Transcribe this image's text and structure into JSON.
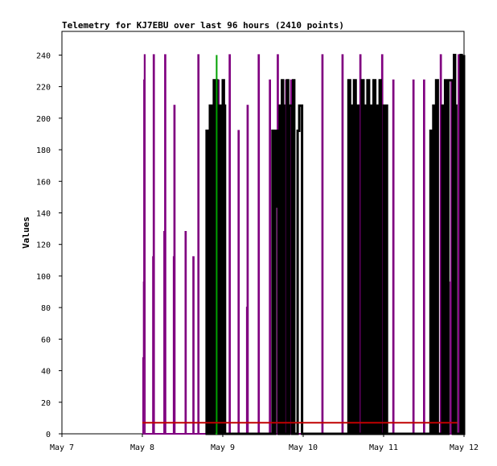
{
  "chart_data": {
    "type": "line",
    "title": "Telemetry for KJ7EBU over last 96 hours (2410 points)",
    "xlabel": "",
    "ylabel": "Values",
    "x_ticks": [
      "May 7",
      "May 8",
      "May 9",
      "May 10",
      "May 11",
      "May 12"
    ],
    "xlim": [
      "May 7",
      "May 12"
    ],
    "y_ticks": [
      0,
      20,
      40,
      60,
      80,
      100,
      120,
      140,
      160,
      180,
      200,
      220,
      240
    ],
    "ylim": [
      0,
      255
    ],
    "grid": false,
    "legend": "none",
    "series": [
      {
        "color": "#800080",
        "points": [
          [
            "May 8 00:10",
            0
          ],
          [
            "May 8 00:15",
            48
          ],
          [
            "May 8 00:25",
            96
          ],
          [
            "May 8 00:30",
            224
          ],
          [
            "May 8 00:40",
            240
          ],
          [
            "May 8 00:45",
            0
          ],
          [
            "May 8 03:00",
            0
          ],
          [
            "May 8 03:10",
            112
          ],
          [
            "May 8 03:20",
            240
          ],
          [
            "May 8 03:30",
            0
          ],
          [
            "May 8 06:20",
            0
          ],
          [
            "May 8 06:30",
            128
          ],
          [
            "May 8 06:45",
            240
          ],
          [
            "May 8 06:55",
            0
          ],
          [
            "May 8 09:10",
            0
          ],
          [
            "May 8 09:20",
            112
          ],
          [
            "May 8 09:30",
            208
          ],
          [
            "May 8 09:40",
            0
          ],
          [
            "May 8 12:40",
            0
          ],
          [
            "May 8 12:50",
            128
          ],
          [
            "May 8 13:00",
            0
          ],
          [
            "May 8 15:00",
            0
          ],
          [
            "May 8 15:10",
            112
          ],
          [
            "May 8 15:20",
            0
          ],
          [
            "May 8 16:30",
            0
          ],
          [
            "May 8 16:40",
            240
          ],
          [
            "May 8 16:50",
            0
          ],
          [
            "May 8 22:30",
            0
          ],
          [
            "May 8 22:40",
            224
          ],
          [
            "May 8 22:50",
            0
          ],
          [
            "May 9 01:50",
            0
          ],
          [
            "May 9 02:00",
            240
          ],
          [
            "May 9 02:10",
            0
          ],
          [
            "May 9 04:30",
            0
          ],
          [
            "May 9 04:40",
            192
          ],
          [
            "May 9 04:50",
            0
          ],
          [
            "May 9 07:00",
            0
          ],
          [
            "May 9 07:10",
            80
          ],
          [
            "May 9 07:20",
            208
          ],
          [
            "May 9 07:30",
            0
          ],
          [
            "May 9 10:30",
            0
          ],
          [
            "May 9 10:40",
            240
          ],
          [
            "May 9 10:50",
            0
          ],
          [
            "May 9 13:50",
            0
          ],
          [
            "May 9 14:00",
            224
          ],
          [
            "May 9 14:10",
            0
          ],
          [
            "May 9 16:10",
            0
          ],
          [
            "May 9 16:20",
            240
          ],
          [
            "May 9 16:30",
            0
          ],
          [
            "May 9 18:40",
            0
          ],
          [
            "May 9 18:50",
            224
          ],
          [
            "May 9 19:00",
            0
          ],
          [
            "May 9 20:10",
            0
          ],
          [
            "May 9 20:20",
            224
          ],
          [
            "May 9 20:30",
            0
          ],
          [
            "May 10 05:30",
            0
          ],
          [
            "May 10 05:40",
            240
          ],
          [
            "May 10 05:50",
            0
          ],
          [
            "May 10 11:30",
            0
          ],
          [
            "May 10 11:40",
            240
          ],
          [
            "May 10 11:50",
            0
          ],
          [
            "May 10 16:50",
            0
          ],
          [
            "May 10 17:00",
            240
          ],
          [
            "May 10 17:10",
            0
          ],
          [
            "May 10 23:20",
            0
          ],
          [
            "May 10 23:30",
            240
          ],
          [
            "May 10 23:40",
            0
          ],
          [
            "May 11 02:40",
            0
          ],
          [
            "May 11 02:50",
            224
          ],
          [
            "May 11 03:00",
            0
          ],
          [
            "May 11 08:40",
            0
          ],
          [
            "May 11 08:50",
            224
          ],
          [
            "May 11 09:00",
            0
          ],
          [
            "May 11 11:50",
            0
          ],
          [
            "May 11 12:00",
            224
          ],
          [
            "May 11 12:10",
            0
          ],
          [
            "May 11 16:50",
            0
          ],
          [
            "May 11 17:00",
            240
          ],
          [
            "May 11 17:10",
            0
          ],
          [
            "May 11 19:50",
            0
          ],
          [
            "May 11 20:00",
            96
          ],
          [
            "May 11 20:10",
            224
          ],
          [
            "May 11 20:20",
            0
          ],
          [
            "May 11 22:10",
            0
          ],
          [
            "May 11 22:20",
            240
          ],
          [
            "May 11 22:30",
            0
          ]
        ]
      },
      {
        "color": "#000000",
        "points": [
          [
            "May 8 18:50",
            0
          ],
          [
            "May 8 19:10",
            192
          ],
          [
            "May 8 19:40",
            0
          ],
          [
            "May 8 20:10",
            208
          ],
          [
            "May 8 20:40",
            0
          ],
          [
            "May 8 21:00",
            192
          ],
          [
            "May 8 21:20",
            224
          ],
          [
            "May 8 21:40",
            0
          ],
          [
            "May 8 22:00",
            224
          ],
          [
            "May 8 22:20",
            0
          ],
          [
            "May 8 23:00",
            208
          ],
          [
            "May 8 23:20",
            0
          ],
          [
            "May 9 00:00",
            224
          ],
          [
            "May 9 00:20",
            208
          ],
          [
            "May 9 00:40",
            0
          ],
          [
            "May 9 14:30",
            0
          ],
          [
            "May 9 14:50",
            192
          ],
          [
            "May 9 15:20",
            0
          ],
          [
            "May 9 15:40",
            144
          ],
          [
            "May 9 16:00",
            192
          ],
          [
            "May 9 16:40",
            0
          ],
          [
            "May 9 17:00",
            208
          ],
          [
            "May 9 17:20",
            0
          ],
          [
            "May 9 17:40",
            224
          ],
          [
            "May 9 18:00",
            208
          ],
          [
            "May 9 18:20",
            0
          ],
          [
            "May 9 19:10",
            224
          ],
          [
            "May 9 19:30",
            0
          ],
          [
            "May 9 19:50",
            208
          ],
          [
            "May 9 20:40",
            0
          ],
          [
            "May 9 21:00",
            224
          ],
          [
            "May 9 21:20",
            0
          ],
          [
            "May 9 22:00",
            0
          ],
          [
            "May 9 22:20",
            192
          ],
          [
            "May 9 22:50",
            208
          ],
          [
            "May 9 23:20",
            208
          ],
          [
            "May 9 23:40",
            0
          ],
          [
            "May 10 13:10",
            0
          ],
          [
            "May 10 13:30",
            224
          ],
          [
            "May 10 14:00",
            0
          ],
          [
            "May 10 14:20",
            208
          ],
          [
            "May 10 14:50",
            0
          ],
          [
            "May 10 15:10",
            224
          ],
          [
            "May 10 15:40",
            0
          ],
          [
            "May 10 16:00",
            208
          ],
          [
            "May 10 16:30",
            0
          ],
          [
            "May 10 17:30",
            224
          ],
          [
            "May 10 18:00",
            0
          ],
          [
            "May 10 18:20",
            208
          ],
          [
            "May 10 18:50",
            0
          ],
          [
            "May 10 19:10",
            224
          ],
          [
            "May 10 19:40",
            0
          ],
          [
            "May 10 20:00",
            208
          ],
          [
            "May 10 20:30",
            0
          ],
          [
            "May 10 21:00",
            224
          ],
          [
            "May 10 21:30",
            0
          ],
          [
            "May 10 22:00",
            208
          ],
          [
            "May 10 22:20",
            0
          ],
          [
            "May 10 22:50",
            224
          ],
          [
            "May 10 23:10",
            0
          ],
          [
            "May 11 00:00",
            208
          ],
          [
            "May 11 00:20",
            0
          ],
          [
            "May 11 00:40",
            208
          ],
          [
            "May 11 01:00",
            0
          ],
          [
            "May 11 13:40",
            0
          ],
          [
            "May 11 14:00",
            192
          ],
          [
            "May 11 14:30",
            0
          ],
          [
            "May 11 14:50",
            208
          ],
          [
            "May 11 15:20",
            0
          ],
          [
            "May 11 15:40",
            224
          ],
          [
            "May 11 16:10",
            0
          ],
          [
            "May 11 17:30",
            208
          ],
          [
            "May 11 18:00",
            0
          ],
          [
            "May 11 18:20",
            224
          ],
          [
            "May 11 18:50",
            0
          ],
          [
            "May 11 19:20",
            224
          ],
          [
            "May 11 20:40",
            0
          ],
          [
            "May 11 21:00",
            240
          ],
          [
            "May 11 21:20",
            208
          ],
          [
            "May 11 21:40",
            0
          ],
          [
            "May 11 23:00",
            240
          ],
          [
            "May 11 23:20",
            208
          ],
          [
            "May 11 23:40",
            0
          ],
          [
            "May 12 00:00",
            240
          ]
        ]
      },
      {
        "color": "#00a000",
        "points": [
          [
            "May 8 21:50",
            0
          ],
          [
            "May 8 22:10",
            240
          ]
        ]
      },
      {
        "color": "#c00000",
        "points": [
          [
            "May 8 00:00",
            7
          ],
          [
            "May 11 22:00",
            7
          ]
        ]
      }
    ]
  }
}
